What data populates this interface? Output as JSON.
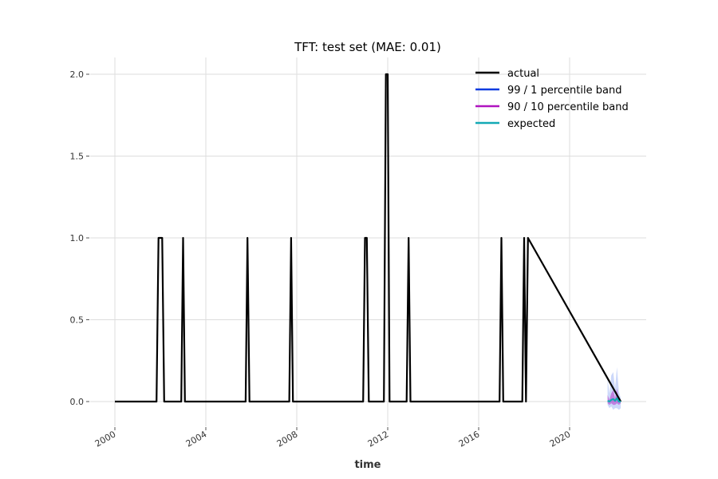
{
  "chart_data": {
    "type": "line",
    "title": "TFT: test set (MAE: 0.01)",
    "xlabel": "time",
    "ylabel": "",
    "xlim": [
      2000.0,
      2023.0
    ],
    "ylim": [
      -0.15,
      2.1
    ],
    "grid": true,
    "legend_position": "top-right",
    "x_ticks": [
      {
        "value": 2000,
        "label": "2000"
      },
      {
        "value": 2004,
        "label": "2004"
      },
      {
        "value": 2008,
        "label": "2008"
      },
      {
        "value": 2012,
        "label": "2012"
      },
      {
        "value": 2016,
        "label": "2016"
      },
      {
        "value": 2020,
        "label": "2020"
      }
    ],
    "y_ticks": [
      {
        "value": 0.0,
        "label": "0.0"
      },
      {
        "value": 0.5,
        "label": "0.5"
      },
      {
        "value": 1.0,
        "label": "1.0"
      },
      {
        "value": 1.5,
        "label": "1.5"
      },
      {
        "value": 2.0,
        "label": "2.0"
      }
    ],
    "series": [
      {
        "name": "actual",
        "color": "#000000",
        "kind": "line",
        "x": [
          2000.0,
          2001.83,
          2001.92,
          2002.08,
          2002.17,
          2002.92,
          2003.0,
          2003.08,
          2005.75,
          2005.83,
          2005.92,
          2007.67,
          2007.75,
          2007.83,
          2010.92,
          2011.0,
          2011.08,
          2011.17,
          2011.83,
          2011.92,
          2012.0,
          2012.08,
          2012.83,
          2012.92,
          2013.0,
          2016.92,
          2017.0,
          2017.08,
          2017.92,
          2018.0,
          2018.08,
          2018.17,
          2022.25
        ],
        "y": [
          0,
          0,
          1,
          1,
          0,
          0,
          1,
          0,
          0,
          1,
          0,
          0,
          1,
          0,
          0,
          1,
          1,
          0,
          0,
          2,
          2,
          0,
          0,
          1,
          0,
          0,
          1,
          0,
          0,
          1,
          0,
          1,
          0
        ]
      },
      {
        "name": "99 / 1 percentile band",
        "color": "#0a3be0",
        "kind": "band",
        "x": [
          2021.67,
          2021.75,
          2021.83,
          2021.92,
          2022.0,
          2022.08,
          2022.17,
          2022.25
        ],
        "upper": [
          0.14,
          0.05,
          0.16,
          0.18,
          0.08,
          0.21,
          0.06,
          0.02
        ],
        "lower": [
          -0.02,
          -0.04,
          -0.03,
          -0.05,
          -0.04,
          -0.04,
          -0.05,
          -0.04
        ]
      },
      {
        "name": "90 / 10 percentile band",
        "color": "#b014c0",
        "kind": "band",
        "x": [
          2021.67,
          2021.75,
          2021.83,
          2021.92,
          2022.0,
          2022.08,
          2022.17,
          2022.25
        ],
        "upper": [
          0.04,
          0.01,
          0.05,
          0.07,
          0.02,
          0.08,
          0.01,
          0.0
        ],
        "lower": [
          -0.01,
          -0.02,
          -0.01,
          -0.02,
          -0.02,
          -0.01,
          -0.02,
          -0.01
        ]
      },
      {
        "name": "expected",
        "color": "#13a9b5",
        "kind": "line",
        "x": [
          2021.67,
          2021.75,
          2021.83,
          2021.92,
          2022.0,
          2022.08,
          2022.17,
          2022.25
        ],
        "y": [
          0.005,
          0.0,
          0.01,
          0.015,
          0.005,
          0.02,
          0.0,
          0.0
        ]
      }
    ]
  }
}
